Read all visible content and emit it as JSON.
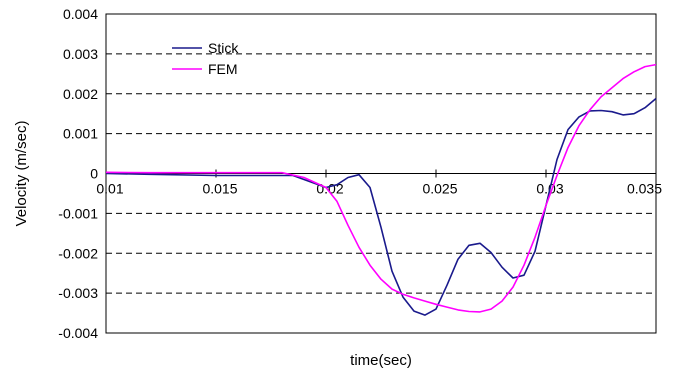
{
  "chart_data": {
    "type": "line",
    "xlabel": "time(sec)",
    "ylabel": "Velocity (m/sec)",
    "xlim": [
      0.01,
      0.035
    ],
    "ylim": [
      -0.004,
      0.004
    ],
    "x_ticks": [
      0.01,
      0.015,
      0.02,
      0.025,
      0.03,
      0.035
    ],
    "x_tick_labels": [
      "0.01",
      "0.015",
      "0.02",
      "0.025",
      "0.03",
      "0.035"
    ],
    "y_ticks": [
      0.004,
      0.003,
      0.002,
      0.001,
      0,
      -0.001,
      -0.002,
      -0.003,
      -0.004
    ],
    "y_tick_labels": [
      "0.004",
      "0.003",
      "0.002",
      "0.001",
      "0",
      "-0.001",
      "-0.002",
      "-0.003",
      "-0.004"
    ],
    "grid": "horizontal dashed",
    "legend_position": "top-left",
    "series": [
      {
        "name": "Stick",
        "color": "#1a1a8c",
        "points": [
          [
            0.01,
            0.0
          ],
          [
            0.012,
            -2e-05
          ],
          [
            0.015,
            -5e-05
          ],
          [
            0.017,
            -5e-05
          ],
          [
            0.0185,
            -5e-05
          ],
          [
            0.0195,
            -0.00025
          ],
          [
            0.02,
            -0.00035
          ],
          [
            0.0205,
            -0.00028
          ],
          [
            0.021,
            -0.0001
          ],
          [
            0.0215,
            -3e-05
          ],
          [
            0.022,
            -0.00035
          ],
          [
            0.0225,
            -0.00135
          ],
          [
            0.023,
            -0.00245
          ],
          [
            0.0235,
            -0.0031
          ],
          [
            0.024,
            -0.00345
          ],
          [
            0.0245,
            -0.00355
          ],
          [
            0.025,
            -0.0034
          ],
          [
            0.0255,
            -0.0028
          ],
          [
            0.026,
            -0.00215
          ],
          [
            0.0265,
            -0.0018
          ],
          [
            0.027,
            -0.00175
          ],
          [
            0.0275,
            -0.00198
          ],
          [
            0.028,
            -0.00235
          ],
          [
            0.0285,
            -0.00262
          ],
          [
            0.029,
            -0.00255
          ],
          [
            0.0295,
            -0.00195
          ],
          [
            0.03,
            -0.0008
          ],
          [
            0.0305,
            0.00035
          ],
          [
            0.031,
            0.0011
          ],
          [
            0.0315,
            0.00142
          ],
          [
            0.032,
            0.00157
          ],
          [
            0.0325,
            0.00158
          ],
          [
            0.033,
            0.00155
          ],
          [
            0.0335,
            0.00147
          ],
          [
            0.034,
            0.0015
          ],
          [
            0.0345,
            0.00165
          ],
          [
            0.035,
            0.00188
          ]
        ]
      },
      {
        "name": "FEM",
        "color": "#ff00ff",
        "points": [
          [
            0.01,
            3e-05
          ],
          [
            0.012,
            2e-05
          ],
          [
            0.015,
            2e-05
          ],
          [
            0.018,
            2e-05
          ],
          [
            0.019,
            -0.0001
          ],
          [
            0.02,
            -0.00035
          ],
          [
            0.0205,
            -0.0007
          ],
          [
            0.021,
            -0.0013
          ],
          [
            0.0215,
            -0.00185
          ],
          [
            0.022,
            -0.0023
          ],
          [
            0.0225,
            -0.00265
          ],
          [
            0.023,
            -0.0029
          ],
          [
            0.0235,
            -0.00303
          ],
          [
            0.024,
            -0.00312
          ],
          [
            0.0245,
            -0.0032
          ],
          [
            0.025,
            -0.00328
          ],
          [
            0.0255,
            -0.00335
          ],
          [
            0.026,
            -0.00342
          ],
          [
            0.0265,
            -0.00346
          ],
          [
            0.027,
            -0.00347
          ],
          [
            0.0275,
            -0.0034
          ],
          [
            0.028,
            -0.0032
          ],
          [
            0.0285,
            -0.00285
          ],
          [
            0.029,
            -0.0023
          ],
          [
            0.0295,
            -0.0016
          ],
          [
            0.03,
            -0.0008
          ],
          [
            0.0305,
            -5e-05
          ],
          [
            0.031,
            0.00065
          ],
          [
            0.0315,
            0.0012
          ],
          [
            0.032,
            0.0016
          ],
          [
            0.0325,
            0.00192
          ],
          [
            0.033,
            0.00215
          ],
          [
            0.0335,
            0.00238
          ],
          [
            0.034,
            0.00255
          ],
          [
            0.0345,
            0.00268
          ],
          [
            0.035,
            0.00273
          ]
        ]
      }
    ]
  }
}
